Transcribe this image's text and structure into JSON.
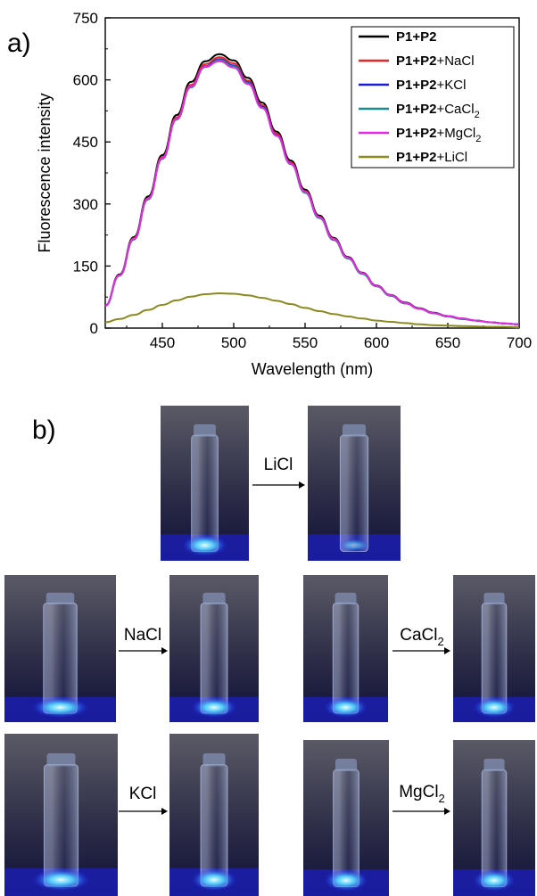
{
  "panel_a_label": "a)",
  "panel_b_label": "b)",
  "chart_data": {
    "type": "line",
    "xlabel": "Wavelength (nm)",
    "ylabel": "Fluorescence intensity",
    "xlim": [
      410,
      700
    ],
    "ylim": [
      0,
      750
    ],
    "xticks": [
      450,
      500,
      550,
      600,
      650,
      700
    ],
    "yticks": [
      0,
      150,
      300,
      450,
      600,
      750
    ],
    "legend_position": "top-right",
    "series": [
      {
        "name": "P1+P2",
        "bold": "P1+P2",
        "suffix": "",
        "subscript": "",
        "color": "#000000",
        "peak_x": 490,
        "peak_y": 662,
        "x": [
          410,
          420,
          430,
          440,
          450,
          460,
          470,
          480,
          490,
          500,
          510,
          520,
          530,
          540,
          550,
          560,
          570,
          580,
          590,
          600,
          610,
          620,
          630,
          640,
          650,
          660,
          670,
          680,
          690,
          700
        ],
        "y": [
          55,
          130,
          220,
          318,
          418,
          515,
          595,
          645,
          662,
          647,
          605,
          545,
          475,
          405,
          335,
          272,
          218,
          172,
          134,
          103,
          80,
          62,
          48,
          37,
          29,
          23,
          18,
          14,
          11,
          9
        ]
      },
      {
        "name": "P1+P2+NaCl",
        "bold": "P1+P2",
        "suffix": "+NaCl",
        "subscript": "",
        "color": "#e8262a",
        "peak_x": 490,
        "peak_y": 655,
        "x": [
          410,
          420,
          430,
          440,
          450,
          460,
          470,
          480,
          490,
          500,
          510,
          520,
          530,
          540,
          550,
          560,
          570,
          580,
          590,
          600,
          610,
          620,
          630,
          640,
          650,
          660,
          670,
          680,
          690,
          700
        ],
        "y": [
          54,
          128,
          217,
          314,
          413,
          509,
          588,
          638,
          655,
          640,
          598,
          539,
          470,
          400,
          331,
          269,
          216,
          170,
          133,
          102,
          79,
          61,
          47,
          36,
          29,
          23,
          18,
          14,
          11,
          9
        ]
      },
      {
        "name": "P1+P2+KCl",
        "bold": "P1+P2",
        "suffix": "+KCl",
        "subscript": "",
        "color": "#1c1cd6",
        "peak_x": 490,
        "peak_y": 650,
        "x": [
          410,
          420,
          430,
          440,
          450,
          460,
          470,
          480,
          490,
          500,
          510,
          520,
          530,
          540,
          550,
          560,
          570,
          580,
          590,
          600,
          610,
          620,
          630,
          640,
          650,
          660,
          670,
          680,
          690,
          700
        ],
        "y": [
          54,
          127,
          215,
          312,
          410,
          505,
          584,
          633,
          650,
          635,
          594,
          535,
          466,
          397,
          328,
          267,
          214,
          169,
          132,
          101,
          78,
          60,
          47,
          36,
          28,
          22,
          18,
          14,
          11,
          9
        ]
      },
      {
        "name": "P1+P2+CaCl2",
        "bold": "P1+P2",
        "suffix": "+CaCl",
        "subscript": "2",
        "color": "#1a8a8a",
        "peak_x": 490,
        "peak_y": 648,
        "x": [
          410,
          420,
          430,
          440,
          450,
          460,
          470,
          480,
          490,
          500,
          510,
          520,
          530,
          540,
          550,
          560,
          570,
          580,
          590,
          600,
          610,
          620,
          630,
          640,
          650,
          660,
          670,
          680,
          690,
          700
        ],
        "y": [
          54,
          127,
          214,
          311,
          409,
          504,
          582,
          631,
          648,
          633,
          592,
          533,
          465,
          396,
          327,
          266,
          213,
          168,
          131,
          101,
          78,
          60,
          47,
          36,
          28,
          22,
          18,
          14,
          11,
          9
        ]
      },
      {
        "name": "P1+P2+MgCl2",
        "bold": "P1+P2",
        "suffix": "+MgCl",
        "subscript": "2",
        "color": "#e52ae5",
        "peak_x": 488,
        "peak_y": 645,
        "x": [
          410,
          420,
          430,
          440,
          450,
          460,
          470,
          480,
          490,
          500,
          510,
          520,
          530,
          540,
          550,
          560,
          570,
          580,
          590,
          600,
          610,
          620,
          630,
          640,
          650,
          660,
          670,
          680,
          690,
          700
        ],
        "y": [
          54,
          128,
          216,
          313,
          411,
          506,
          584,
          632,
          645,
          630,
          590,
          532,
          465,
          397,
          329,
          268,
          215,
          170,
          133,
          102,
          79,
          61,
          47,
          36,
          29,
          23,
          18,
          14,
          11,
          9
        ]
      },
      {
        "name": "P1+P2+LiCl",
        "bold": "P1+P2",
        "suffix": "+LiCl",
        "subscript": "",
        "color": "#8a8a1f",
        "peak_x": 490,
        "peak_y": 84,
        "x": [
          410,
          420,
          430,
          440,
          450,
          460,
          470,
          480,
          490,
          500,
          510,
          520,
          530,
          540,
          550,
          560,
          570,
          580,
          590,
          600,
          610,
          620,
          630,
          640,
          650,
          660,
          670,
          680,
          690,
          700
        ],
        "y": [
          14,
          22,
          32,
          44,
          56,
          67,
          76,
          82,
          84,
          83,
          79,
          73,
          66,
          58,
          49,
          41,
          34,
          28,
          23,
          18,
          15,
          12,
          9,
          7,
          6,
          5,
          4,
          3,
          3,
          2
        ]
      }
    ]
  },
  "photos": {
    "top_arrow_label": "LiCl",
    "pairs": [
      {
        "label": "NaCl",
        "sub": ""
      },
      {
        "label": "CaCl",
        "sub": "2"
      },
      {
        "label": "KCl",
        "sub": ""
      },
      {
        "label": "MgCl",
        "sub": "2"
      }
    ]
  }
}
